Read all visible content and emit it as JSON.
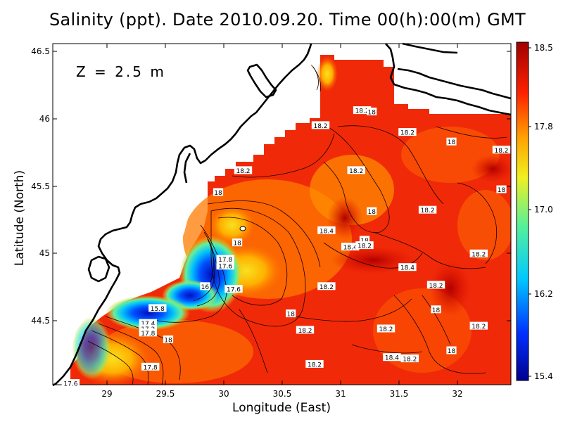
{
  "title": "Salinity (ppt). Date 2010.09.20. Time 00(h):00(m) GMT",
  "depth_label": "Z = 2.5 m",
  "chart_data": {
    "type": "heatmap",
    "title": "Salinity (ppt). Date 2010.09.20. Time 00(h):00(m) GMT",
    "xlabel": "Longitude (East)",
    "ylabel": "Latitude (North)",
    "xlim": [
      28.6,
      32.45
    ],
    "ylim": [
      44.05,
      46.55
    ],
    "x_ticks": [
      "29",
      "29.5",
      "30",
      "30.5",
      "31",
      "31.5",
      "32"
    ],
    "y_ticks": [
      "44.5",
      "45",
      "45.5",
      "46",
      "46.5"
    ],
    "colorbar": {
      "min": 15.4,
      "max": 18.5,
      "ticks": [
        "15.4",
        "16.2",
        "17.0",
        "17.8",
        "18.5"
      ],
      "colors": [
        "#000090",
        "#0030ff",
        "#00c8ff",
        "#50f0a0",
        "#f0f020",
        "#ffa000",
        "#ff2000",
        "#a00000"
      ]
    },
    "annotation": "Z = 2.5 m",
    "contour_labels": [
      {
        "lon": 31.2,
        "lat": 46.06,
        "text": "18.2"
      },
      {
        "lon": 31.28,
        "lat": 46.05,
        "text": "18"
      },
      {
        "lon": 30.85,
        "lat": 45.95,
        "text": "18.2"
      },
      {
        "lon": 31.58,
        "lat": 45.9,
        "text": "18.2"
      },
      {
        "lon": 31.95,
        "lat": 45.83,
        "text": "18"
      },
      {
        "lon": 32.37,
        "lat": 45.77,
        "text": "18.2"
      },
      {
        "lon": 30.2,
        "lat": 45.62,
        "text": "18.2"
      },
      {
        "lon": 31.15,
        "lat": 45.62,
        "text": "18.2"
      },
      {
        "lon": 29.99,
        "lat": 45.46,
        "text": "18"
      },
      {
        "lon": 32.37,
        "lat": 45.48,
        "text": "18"
      },
      {
        "lon": 31.28,
        "lat": 45.32,
        "text": "18"
      },
      {
        "lon": 31.75,
        "lat": 45.33,
        "text": "18.2"
      },
      {
        "lon": 30.9,
        "lat": 45.18,
        "text": "18.4"
      },
      {
        "lon": 31.22,
        "lat": 45.11,
        "text": "18"
      },
      {
        "lon": 30.15,
        "lat": 45.09,
        "text": "18"
      },
      {
        "lon": 31.1,
        "lat": 45.06,
        "text": "18.4"
      },
      {
        "lon": 31.22,
        "lat": 45.07,
        "text": "18.2"
      },
      {
        "lon": 30.05,
        "lat": 44.97,
        "text": "17.8"
      },
      {
        "lon": 30.05,
        "lat": 44.92,
        "text": "17.6"
      },
      {
        "lon": 32.18,
        "lat": 45.01,
        "text": "18.2"
      },
      {
        "lon": 31.58,
        "lat": 44.91,
        "text": "18.4"
      },
      {
        "lon": 29.88,
        "lat": 44.77,
        "text": "16"
      },
      {
        "lon": 30.9,
        "lat": 44.77,
        "text": "18.2"
      },
      {
        "lon": 30.12,
        "lat": 44.75,
        "text": "17.6"
      },
      {
        "lon": 31.82,
        "lat": 44.78,
        "text": "18.2"
      },
      {
        "lon": 29.48,
        "lat": 44.61,
        "text": "15.8"
      },
      {
        "lon": 30.6,
        "lat": 44.57,
        "text": "18"
      },
      {
        "lon": 31.82,
        "lat": 44.6,
        "text": "18"
      },
      {
        "lon": 29.4,
        "lat": 44.5,
        "text": "17.4"
      },
      {
        "lon": 29.4,
        "lat": 44.46,
        "text": "17.2"
      },
      {
        "lon": 29.4,
        "lat": 44.43,
        "text": "17.8"
      },
      {
        "lon": 29.57,
        "lat": 44.38,
        "text": "18"
      },
      {
        "lon": 30.72,
        "lat": 44.45,
        "text": "18.2"
      },
      {
        "lon": 31.4,
        "lat": 44.46,
        "text": "18.2"
      },
      {
        "lon": 32.18,
        "lat": 44.48,
        "text": "18.2"
      },
      {
        "lon": 31.95,
        "lat": 44.3,
        "text": "18"
      },
      {
        "lon": 31.45,
        "lat": 44.25,
        "text": "18.4"
      },
      {
        "lon": 31.6,
        "lat": 44.24,
        "text": "18.2"
      },
      {
        "lon": 29.42,
        "lat": 44.18,
        "text": "17.8"
      },
      {
        "lon": 30.8,
        "lat": 44.2,
        "text": "18.2"
      },
      {
        "lon": 28.75,
        "lat": 44.06,
        "text": "17.6"
      }
    ]
  }
}
